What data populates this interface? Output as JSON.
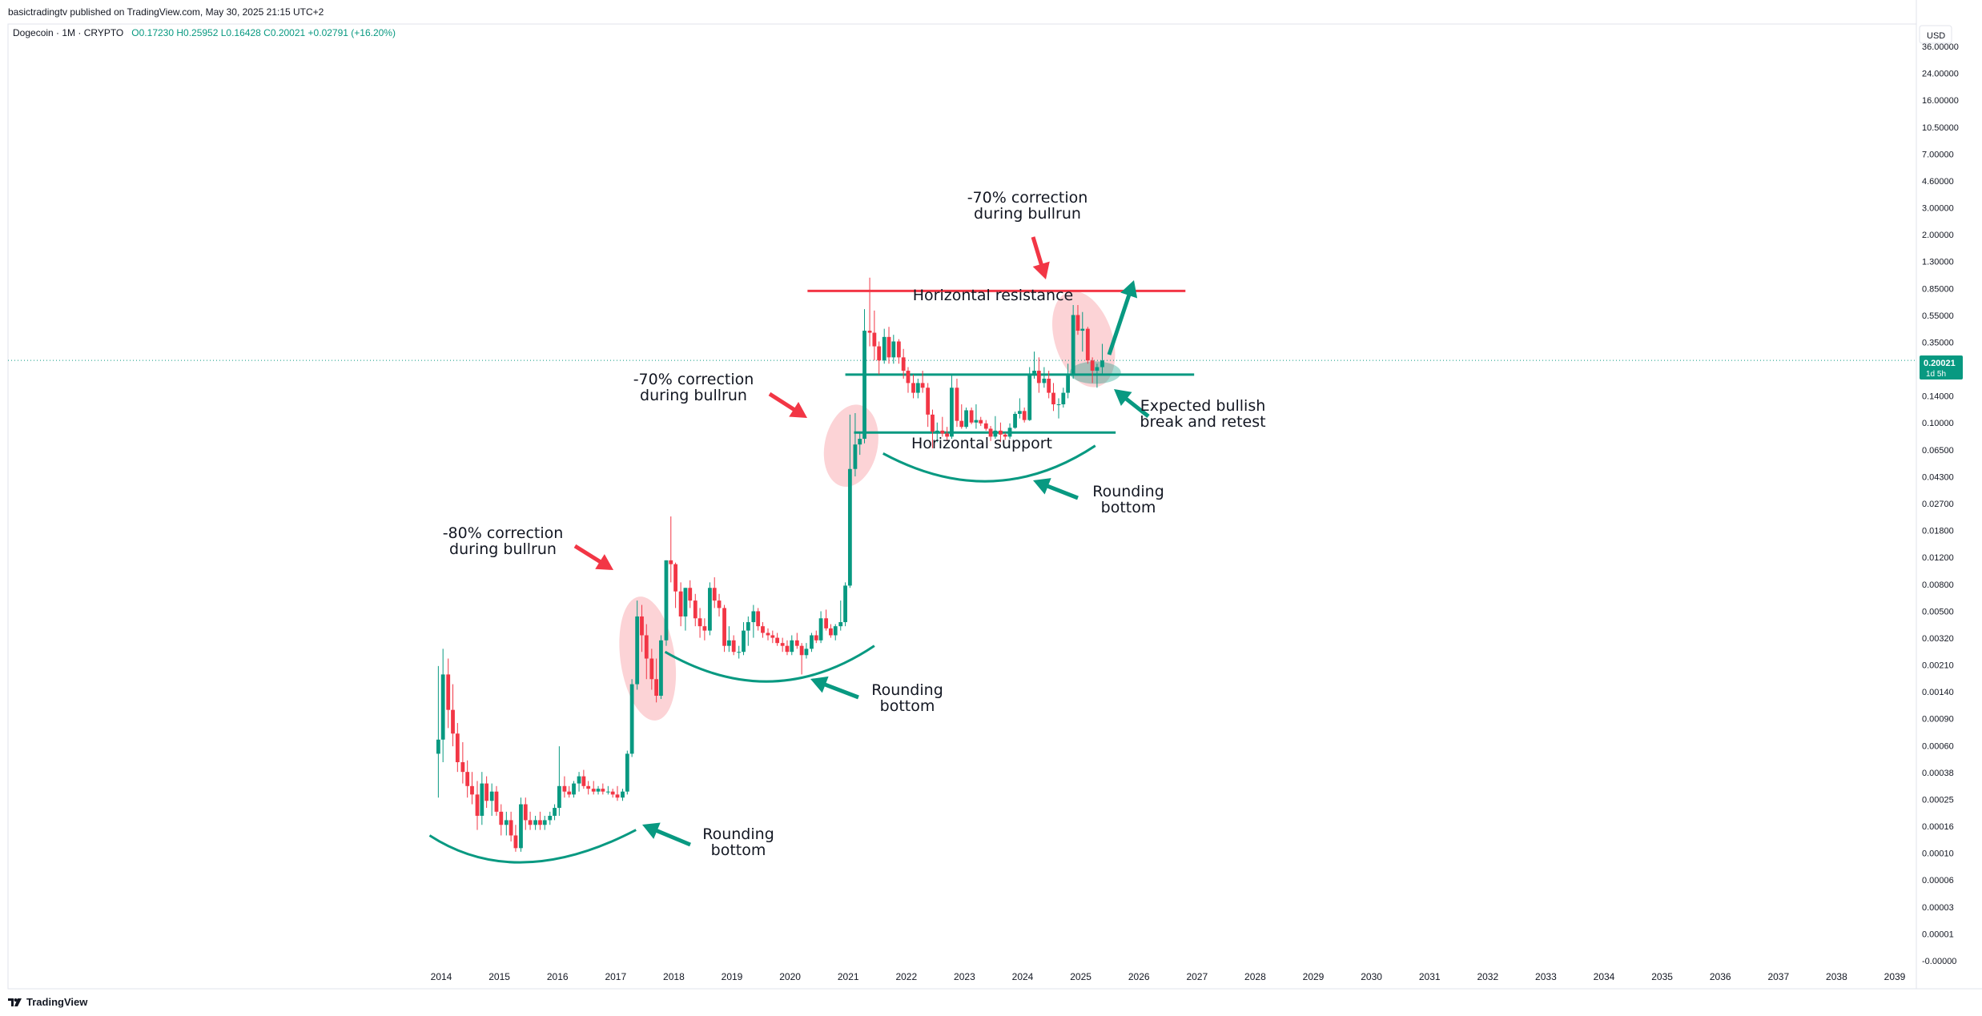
{
  "header": {
    "published": "basictradingtv published on TradingView.com, May 30, 2025 21:15 UTC+2"
  },
  "symbol": {
    "name": "Dogecoin · 1M · CRYPTO",
    "open": "O0.17230",
    "high": "H0.25952",
    "low": "L0.16428",
    "close": "C0.20021",
    "change": "+0.02791 (+16.20%)"
  },
  "price_axis": {
    "currency": "USD",
    "current_price": "0.20021",
    "countdown": "1d 5h"
  },
  "footer": {
    "brand": "TradingView"
  },
  "colors": {
    "up": "#089981",
    "down": "#f23645",
    "accent": "#089981",
    "resistance": "#f23645"
  },
  "chart_data": {
    "type": "candlestick",
    "scale": "log",
    "x_ticks": [
      "2014",
      "2015",
      "2016",
      "2017",
      "2018",
      "2019",
      "2020",
      "2021",
      "2022",
      "2023",
      "2024",
      "2025",
      "2026",
      "2027",
      "2028",
      "2029",
      "2030",
      "2031",
      "2032",
      "2033",
      "2034",
      "2035",
      "2036",
      "2037",
      "2038",
      "2039"
    ],
    "y_ticks": [
      "36.00000",
      "24.00000",
      "16.00000",
      "10.50000",
      "7.00000",
      "4.60000",
      "3.00000",
      "2.00000",
      "1.30000",
      "0.85000",
      "0.55000",
      "0.35000",
      "0.22000",
      "0.14000",
      "0.10000",
      "0.06500",
      "0.04300",
      "0.02700",
      "0.01800",
      "0.01200",
      "0.00800",
      "0.00500",
      "0.00320",
      "0.00210",
      "0.00140",
      "0.00090",
      "0.00060",
      "0.00038",
      "0.00025",
      "0.00016",
      "0.00010",
      "0.00006",
      "0.00003",
      "0.00001",
      "-0.00000"
    ],
    "annotations": [
      {
        "text": "-70% correction\nduring bullrun"
      },
      {
        "text": "Horizontal resistance"
      },
      {
        "text": "-70% correction\nduring bullrun"
      },
      {
        "text": "Expected bullish\nbreak and retest"
      },
      {
        "text": "Horizontal support"
      },
      {
        "text": "Rounding\nbottom"
      },
      {
        "text": "-80% correction\nduring bullrun"
      },
      {
        "text": "Rounding\nbottom"
      },
      {
        "text": "Rounding\nbottom"
      }
    ],
    "levels": {
      "resistance": 0.6,
      "mid_line": 0.16,
      "support": 0.064,
      "current": 0.20021
    },
    "candles": [
      {
        "t": 2013.95,
        "o": 0.0004,
        "h": 0.0016,
        "l": 0.0002,
        "c": 0.0005
      },
      {
        "t": 2014.03,
        "o": 0.0005,
        "h": 0.0021,
        "l": 0.00035,
        "c": 0.0014
      },
      {
        "t": 2014.12,
        "o": 0.0014,
        "h": 0.0018,
        "l": 0.0006,
        "c": 0.0008
      },
      {
        "t": 2014.2,
        "o": 0.0008,
        "h": 0.0012,
        "l": 0.00045,
        "c": 0.00055
      },
      {
        "t": 2014.28,
        "o": 0.00055,
        "h": 0.00065,
        "l": 0.0003,
        "c": 0.00035
      },
      {
        "t": 2014.37,
        "o": 0.00035,
        "h": 0.00048,
        "l": 0.00025,
        "c": 0.0003
      },
      {
        "t": 2014.45,
        "o": 0.0003,
        "h": 0.00036,
        "l": 0.0002,
        "c": 0.00024
      },
      {
        "t": 2014.53,
        "o": 0.00024,
        "h": 0.0003,
        "l": 0.00018,
        "c": 0.00021
      },
      {
        "t": 2014.62,
        "o": 0.00021,
        "h": 0.00026,
        "l": 0.00012,
        "c": 0.00015
      },
      {
        "t": 2014.7,
        "o": 0.00015,
        "h": 0.0003,
        "l": 0.00013,
        "c": 0.00025
      },
      {
        "t": 2014.78,
        "o": 0.00025,
        "h": 0.00028,
        "l": 0.00017,
        "c": 0.00019
      },
      {
        "t": 2014.87,
        "o": 0.00019,
        "h": 0.00025,
        "l": 0.00015,
        "c": 0.00022
      },
      {
        "t": 2014.95,
        "o": 0.00022,
        "h": 0.00024,
        "l": 0.00015,
        "c": 0.00016
      },
      {
        "t": 2015.03,
        "o": 0.00016,
        "h": 0.00018,
        "l": 0.00011,
        "c": 0.00013
      },
      {
        "t": 2015.12,
        "o": 0.00013,
        "h": 0.00016,
        "l": 0.00011,
        "c": 0.00014
      },
      {
        "t": 2015.2,
        "o": 0.00014,
        "h": 0.00016,
        "l": 0.0001,
        "c": 0.00011
      },
      {
        "t": 2015.28,
        "o": 0.00011,
        "h": 0.00013,
        "l": 8.5e-05,
        "c": 9e-05
      },
      {
        "t": 2015.37,
        "o": 9e-05,
        "h": 0.0002,
        "l": 8.5e-05,
        "c": 0.00018
      },
      {
        "t": 2015.45,
        "o": 0.00018,
        "h": 0.0002,
        "l": 0.00012,
        "c": 0.00014
      },
      {
        "t": 2015.53,
        "o": 0.00014,
        "h": 0.00016,
        "l": 0.00012,
        "c": 0.00013
      },
      {
        "t": 2015.62,
        "o": 0.00013,
        "h": 0.00015,
        "l": 0.00012,
        "c": 0.00014
      },
      {
        "t": 2015.7,
        "o": 0.00014,
        "h": 0.00016,
        "l": 0.00012,
        "c": 0.00013
      },
      {
        "t": 2015.78,
        "o": 0.00013,
        "h": 0.00015,
        "l": 0.00012,
        "c": 0.00014
      },
      {
        "t": 2015.87,
        "o": 0.00014,
        "h": 0.00016,
        "l": 0.00013,
        "c": 0.00015
      },
      {
        "t": 2015.95,
        "o": 0.00015,
        "h": 0.00018,
        "l": 0.00014,
        "c": 0.00017
      },
      {
        "t": 2016.03,
        "o": 0.00017,
        "h": 0.00045,
        "l": 0.00015,
        "c": 0.00024
      },
      {
        "t": 2016.12,
        "o": 0.00024,
        "h": 0.00028,
        "l": 0.0002,
        "c": 0.00022
      },
      {
        "t": 2016.2,
        "o": 0.00022,
        "h": 0.00024,
        "l": 0.0002,
        "c": 0.00021
      },
      {
        "t": 2016.28,
        "o": 0.00021,
        "h": 0.00026,
        "l": 0.0002,
        "c": 0.00025
      },
      {
        "t": 2016.37,
        "o": 0.00025,
        "h": 0.0003,
        "l": 0.00022,
        "c": 0.00028
      },
      {
        "t": 2016.45,
        "o": 0.00028,
        "h": 0.00031,
        "l": 0.00023,
        "c": 0.00024
      },
      {
        "t": 2016.53,
        "o": 0.00024,
        "h": 0.00026,
        "l": 0.00021,
        "c": 0.00023
      },
      {
        "t": 2016.62,
        "o": 0.00023,
        "h": 0.00026,
        "l": 0.00021,
        "c": 0.00022
      },
      {
        "t": 2016.7,
        "o": 0.00022,
        "h": 0.00024,
        "l": 0.00021,
        "c": 0.00023
      },
      {
        "t": 2016.78,
        "o": 0.00023,
        "h": 0.00025,
        "l": 0.00021,
        "c": 0.00022
      },
      {
        "t": 2016.87,
        "o": 0.00022,
        "h": 0.00024,
        "l": 0.00021,
        "c": 0.00022
      },
      {
        "t": 2016.95,
        "o": 0.00022,
        "h": 0.00023,
        "l": 0.0002,
        "c": 0.00021
      },
      {
        "t": 2017.03,
        "o": 0.00021,
        "h": 0.00024,
        "l": 0.00019,
        "c": 0.0002
      },
      {
        "t": 2017.12,
        "o": 0.0002,
        "h": 0.00023,
        "l": 0.00019,
        "c": 0.00022
      },
      {
        "t": 2017.2,
        "o": 0.00022,
        "h": 0.00042,
        "l": 0.00021,
        "c": 0.0004
      },
      {
        "t": 2017.28,
        "o": 0.0004,
        "h": 0.0013,
        "l": 0.00038,
        "c": 0.0012
      },
      {
        "t": 2017.37,
        "o": 0.0012,
        "h": 0.0045,
        "l": 0.0011,
        "c": 0.0035
      },
      {
        "t": 2017.45,
        "o": 0.0035,
        "h": 0.0042,
        "l": 0.002,
        "c": 0.0026
      },
      {
        "t": 2017.53,
        "o": 0.0026,
        "h": 0.0031,
        "l": 0.0013,
        "c": 0.0018
      },
      {
        "t": 2017.62,
        "o": 0.0018,
        "h": 0.0021,
        "l": 0.0011,
        "c": 0.0013
      },
      {
        "t": 2017.7,
        "o": 0.0013,
        "h": 0.0018,
        "l": 0.0009,
        "c": 0.001
      },
      {
        "t": 2017.78,
        "o": 0.001,
        "h": 0.0026,
        "l": 0.00095,
        "c": 0.0024
      },
      {
        "t": 2017.87,
        "o": 0.0024,
        "h": 0.0085,
        "l": 0.0022,
        "c": 0.0085
      },
      {
        "t": 2017.95,
        "o": 0.0085,
        "h": 0.017,
        "l": 0.006,
        "c": 0.008
      },
      {
        "t": 2018.03,
        "o": 0.008,
        "h": 0.0082,
        "l": 0.004,
        "c": 0.0052
      },
      {
        "t": 2018.12,
        "o": 0.0052,
        "h": 0.006,
        "l": 0.003,
        "c": 0.0035
      },
      {
        "t": 2018.2,
        "o": 0.0035,
        "h": 0.0055,
        "l": 0.0028,
        "c": 0.0055
      },
      {
        "t": 2018.28,
        "o": 0.0055,
        "h": 0.0062,
        "l": 0.004,
        "c": 0.0045
      },
      {
        "t": 2018.37,
        "o": 0.0045,
        "h": 0.005,
        "l": 0.003,
        "c": 0.0034
      },
      {
        "t": 2018.45,
        "o": 0.0034,
        "h": 0.004,
        "l": 0.0025,
        "c": 0.003
      },
      {
        "t": 2018.53,
        "o": 0.003,
        "h": 0.0034,
        "l": 0.0024,
        "c": 0.0028
      },
      {
        "t": 2018.62,
        "o": 0.0028,
        "h": 0.006,
        "l": 0.0026,
        "c": 0.0055
      },
      {
        "t": 2018.7,
        "o": 0.0055,
        "h": 0.0065,
        "l": 0.004,
        "c": 0.0045
      },
      {
        "t": 2018.78,
        "o": 0.0045,
        "h": 0.005,
        "l": 0.0035,
        "c": 0.004
      },
      {
        "t": 2018.87,
        "o": 0.004,
        "h": 0.0042,
        "l": 0.002,
        "c": 0.0022
      },
      {
        "t": 2018.95,
        "o": 0.0022,
        "h": 0.003,
        "l": 0.002,
        "c": 0.0024
      },
      {
        "t": 2019.03,
        "o": 0.0024,
        "h": 0.0026,
        "l": 0.0019,
        "c": 0.002
      },
      {
        "t": 2019.12,
        "o": 0.002,
        "h": 0.0022,
        "l": 0.0018,
        "c": 0.002
      },
      {
        "t": 2019.2,
        "o": 0.002,
        "h": 0.0032,
        "l": 0.0019,
        "c": 0.0028
      },
      {
        "t": 2019.28,
        "o": 0.0028,
        "h": 0.0035,
        "l": 0.0022,
        "c": 0.0032
      },
      {
        "t": 2019.37,
        "o": 0.0032,
        "h": 0.0042,
        "l": 0.0025,
        "c": 0.0038
      },
      {
        "t": 2019.45,
        "o": 0.0038,
        "h": 0.004,
        "l": 0.0028,
        "c": 0.003
      },
      {
        "t": 2019.53,
        "o": 0.003,
        "h": 0.0032,
        "l": 0.0025,
        "c": 0.0027
      },
      {
        "t": 2019.62,
        "o": 0.0027,
        "h": 0.0029,
        "l": 0.0024,
        "c": 0.0026
      },
      {
        "t": 2019.7,
        "o": 0.0026,
        "h": 0.0028,
        "l": 0.0023,
        "c": 0.0025
      },
      {
        "t": 2019.78,
        "o": 0.0025,
        "h": 0.0027,
        "l": 0.0022,
        "c": 0.0023
      },
      {
        "t": 2019.87,
        "o": 0.0023,
        "h": 0.0025,
        "l": 0.002,
        "c": 0.0022
      },
      {
        "t": 2019.95,
        "o": 0.0022,
        "h": 0.0024,
        "l": 0.0019,
        "c": 0.002
      },
      {
        "t": 2020.03,
        "o": 0.002,
        "h": 0.0026,
        "l": 0.0019,
        "c": 0.0024
      },
      {
        "t": 2020.12,
        "o": 0.0024,
        "h": 0.0027,
        "l": 0.0021,
        "c": 0.0022
      },
      {
        "t": 2020.2,
        "o": 0.0022,
        "h": 0.0023,
        "l": 0.0014,
        "c": 0.0019
      },
      {
        "t": 2020.28,
        "o": 0.0019,
        "h": 0.0023,
        "l": 0.0018,
        "c": 0.0021
      },
      {
        "t": 2020.37,
        "o": 0.0021,
        "h": 0.0027,
        "l": 0.002,
        "c": 0.0026
      },
      {
        "t": 2020.45,
        "o": 0.0026,
        "h": 0.0028,
        "l": 0.0023,
        "c": 0.0024
      },
      {
        "t": 2020.53,
        "o": 0.0024,
        "h": 0.0038,
        "l": 0.0023,
        "c": 0.0034
      },
      {
        "t": 2020.62,
        "o": 0.0034,
        "h": 0.0039,
        "l": 0.0028,
        "c": 0.0029
      },
      {
        "t": 2020.7,
        "o": 0.0029,
        "h": 0.0031,
        "l": 0.0025,
        "c": 0.0026
      },
      {
        "t": 2020.78,
        "o": 0.0026,
        "h": 0.0031,
        "l": 0.0024,
        "c": 0.003
      },
      {
        "t": 2020.87,
        "o": 0.003,
        "h": 0.0045,
        "l": 0.0028,
        "c": 0.0032
      },
      {
        "t": 2020.95,
        "o": 0.0032,
        "h": 0.006,
        "l": 0.003,
        "c": 0.0057
      },
      {
        "t": 2021.03,
        "o": 0.0057,
        "h": 0.085,
        "l": 0.0055,
        "c": 0.036
      },
      {
        "t": 2021.12,
        "o": 0.036,
        "h": 0.087,
        "l": 0.032,
        "c": 0.053
      },
      {
        "t": 2021.2,
        "o": 0.053,
        "h": 0.065,
        "l": 0.045,
        "c": 0.058
      },
      {
        "t": 2021.28,
        "o": 0.058,
        "h": 0.45,
        "l": 0.054,
        "c": 0.32
      },
      {
        "t": 2021.37,
        "o": 0.32,
        "h": 0.74,
        "l": 0.25,
        "c": 0.31
      },
      {
        "t": 2021.45,
        "o": 0.31,
        "h": 0.44,
        "l": 0.2,
        "c": 0.25
      },
      {
        "t": 2021.53,
        "o": 0.25,
        "h": 0.27,
        "l": 0.16,
        "c": 0.2
      },
      {
        "t": 2021.62,
        "o": 0.2,
        "h": 0.33,
        "l": 0.19,
        "c": 0.29
      },
      {
        "t": 2021.7,
        "o": 0.29,
        "h": 0.34,
        "l": 0.19,
        "c": 0.21
      },
      {
        "t": 2021.78,
        "o": 0.21,
        "h": 0.3,
        "l": 0.19,
        "c": 0.27
      },
      {
        "t": 2021.87,
        "o": 0.27,
        "h": 0.28,
        "l": 0.19,
        "c": 0.21
      },
      {
        "t": 2021.95,
        "o": 0.21,
        "h": 0.24,
        "l": 0.15,
        "c": 0.17
      },
      {
        "t": 2022.03,
        "o": 0.17,
        "h": 0.18,
        "l": 0.12,
        "c": 0.14
      },
      {
        "t": 2022.12,
        "o": 0.14,
        "h": 0.16,
        "l": 0.11,
        "c": 0.12
      },
      {
        "t": 2022.2,
        "o": 0.12,
        "h": 0.15,
        "l": 0.11,
        "c": 0.14
      },
      {
        "t": 2022.28,
        "o": 0.14,
        "h": 0.17,
        "l": 0.12,
        "c": 0.13
      },
      {
        "t": 2022.37,
        "o": 0.13,
        "h": 0.14,
        "l": 0.07,
        "c": 0.085
      },
      {
        "t": 2022.45,
        "o": 0.085,
        "h": 0.092,
        "l": 0.05,
        "c": 0.065
      },
      {
        "t": 2022.53,
        "o": 0.065,
        "h": 0.075,
        "l": 0.055,
        "c": 0.066
      },
      {
        "t": 2022.62,
        "o": 0.066,
        "h": 0.082,
        "l": 0.06,
        "c": 0.063
      },
      {
        "t": 2022.7,
        "o": 0.063,
        "h": 0.07,
        "l": 0.057,
        "c": 0.06
      },
      {
        "t": 2022.78,
        "o": 0.06,
        "h": 0.16,
        "l": 0.058,
        "c": 0.13
      },
      {
        "t": 2022.87,
        "o": 0.13,
        "h": 0.15,
        "l": 0.07,
        "c": 0.077
      },
      {
        "t": 2022.95,
        "o": 0.077,
        "h": 0.1,
        "l": 0.068,
        "c": 0.07
      },
      {
        "t": 2023.03,
        "o": 0.07,
        "h": 0.095,
        "l": 0.068,
        "c": 0.091
      },
      {
        "t": 2023.12,
        "o": 0.091,
        "h": 0.095,
        "l": 0.073,
        "c": 0.075
      },
      {
        "t": 2023.2,
        "o": 0.075,
        "h": 0.1,
        "l": 0.068,
        "c": 0.078
      },
      {
        "t": 2023.28,
        "o": 0.078,
        "h": 0.082,
        "l": 0.071,
        "c": 0.074
      },
      {
        "t": 2023.37,
        "o": 0.074,
        "h": 0.078,
        "l": 0.066,
        "c": 0.068
      },
      {
        "t": 2023.45,
        "o": 0.068,
        "h": 0.071,
        "l": 0.056,
        "c": 0.06
      },
      {
        "t": 2023.53,
        "o": 0.06,
        "h": 0.083,
        "l": 0.058,
        "c": 0.066
      },
      {
        "t": 2023.62,
        "o": 0.066,
        "h": 0.075,
        "l": 0.055,
        "c": 0.062
      },
      {
        "t": 2023.7,
        "o": 0.062,
        "h": 0.064,
        "l": 0.057,
        "c": 0.06
      },
      {
        "t": 2023.78,
        "o": 0.06,
        "h": 0.074,
        "l": 0.058,
        "c": 0.069
      },
      {
        "t": 2023.87,
        "o": 0.069,
        "h": 0.089,
        "l": 0.068,
        "c": 0.086
      },
      {
        "t": 2023.95,
        "o": 0.086,
        "h": 0.11,
        "l": 0.08,
        "c": 0.09
      },
      {
        "t": 2024.03,
        "o": 0.09,
        "h": 0.095,
        "l": 0.075,
        "c": 0.078
      },
      {
        "t": 2024.12,
        "o": 0.078,
        "h": 0.18,
        "l": 0.077,
        "c": 0.16
      },
      {
        "t": 2024.2,
        "o": 0.16,
        "h": 0.23,
        "l": 0.15,
        "c": 0.17
      },
      {
        "t": 2024.28,
        "o": 0.17,
        "h": 0.21,
        "l": 0.12,
        "c": 0.14
      },
      {
        "t": 2024.37,
        "o": 0.14,
        "h": 0.18,
        "l": 0.13,
        "c": 0.15
      },
      {
        "t": 2024.45,
        "o": 0.15,
        "h": 0.17,
        "l": 0.11,
        "c": 0.12
      },
      {
        "t": 2024.53,
        "o": 0.12,
        "h": 0.14,
        "l": 0.09,
        "c": 0.1
      },
      {
        "t": 2024.62,
        "o": 0.1,
        "h": 0.11,
        "l": 0.08,
        "c": 0.1
      },
      {
        "t": 2024.7,
        "o": 0.1,
        "h": 0.13,
        "l": 0.095,
        "c": 0.12
      },
      {
        "t": 2024.78,
        "o": 0.12,
        "h": 0.19,
        "l": 0.11,
        "c": 0.16
      },
      {
        "t": 2024.87,
        "o": 0.16,
        "h": 0.48,
        "l": 0.15,
        "c": 0.41
      },
      {
        "t": 2024.95,
        "o": 0.41,
        "h": 0.48,
        "l": 0.3,
        "c": 0.32
      },
      {
        "t": 2025.03,
        "o": 0.32,
        "h": 0.43,
        "l": 0.23,
        "c": 0.33
      },
      {
        "t": 2025.12,
        "o": 0.33,
        "h": 0.34,
        "l": 0.19,
        "c": 0.2
      },
      {
        "t": 2025.2,
        "o": 0.2,
        "h": 0.21,
        "l": 0.14,
        "c": 0.17
      },
      {
        "t": 2025.28,
        "o": 0.17,
        "h": 0.19,
        "l": 0.13,
        "c": 0.18
      },
      {
        "t": 2025.37,
        "o": 0.18,
        "h": 0.26,
        "l": 0.16,
        "c": 0.2
      }
    ]
  }
}
